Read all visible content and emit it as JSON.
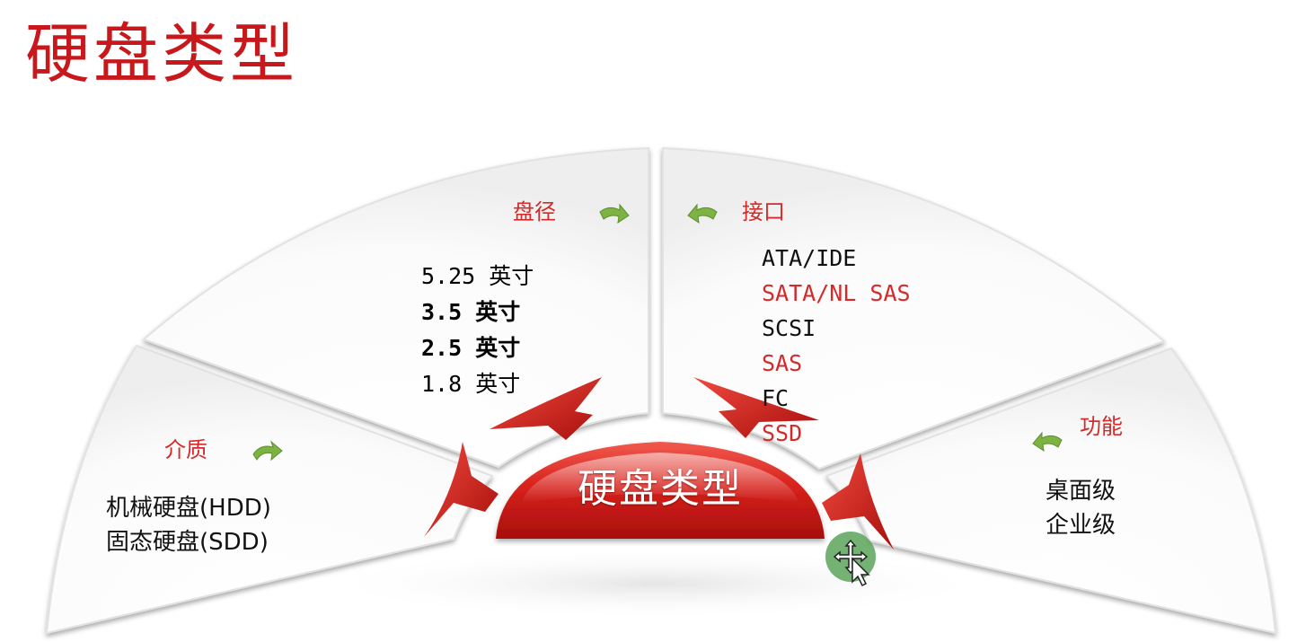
{
  "title": "硬盘类型",
  "center": {
    "label": "硬盘类型"
  },
  "segments": {
    "medium": {
      "title": "介质",
      "items": [
        "机械硬盘(HDD)",
        "固态硬盘(SDD)"
      ]
    },
    "diameter": {
      "title": "盘径",
      "items": [
        {
          "text": "5.25 英寸",
          "bold": false
        },
        {
          "text": "3.5 英寸",
          "bold": true
        },
        {
          "text": "2.5 英寸",
          "bold": true
        },
        {
          "text": "1.8 英寸",
          "bold": false
        }
      ]
    },
    "interface": {
      "title": "接口",
      "items": [
        {
          "text": "ATA/IDE",
          "color": "#111111"
        },
        {
          "text": "SATA/NL SAS",
          "color": "#d42a2a"
        },
        {
          "text": "SCSI",
          "color": "#111111"
        },
        {
          "text": "SAS",
          "color": "#d42a2a"
        },
        {
          "text": "FC",
          "color": "#111111"
        },
        {
          "text": "SSD",
          "color": "#d42a2a"
        }
      ]
    },
    "function": {
      "title": "功能",
      "items": [
        "桌面级",
        "企业级"
      ]
    }
  },
  "colors": {
    "title_red": "#c8181c",
    "accent_red": "#d42a2a",
    "arrow_green": "#7cb342",
    "cursor_green": "#5aa55a"
  }
}
